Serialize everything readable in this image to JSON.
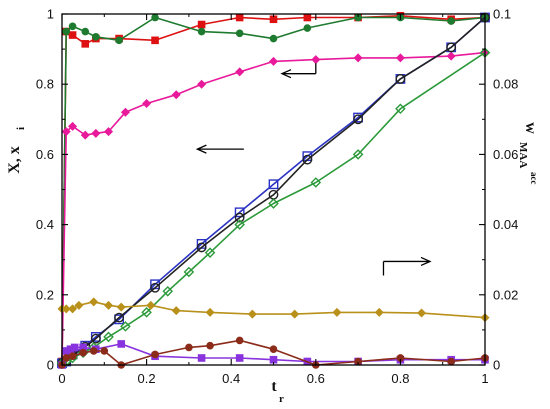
{
  "chart_data": {
    "type": "line",
    "title": "",
    "xlabel": "t",
    "xlabel_sub": "r",
    "ylabel": "X, x",
    "ylabel_sub": "i",
    "y2label": "w",
    "y2label_sub": "MAA",
    "y2label_sub2": "acc",
    "xlim": [
      0,
      1
    ],
    "ylim": [
      0,
      1
    ],
    "y2lim": [
      0,
      0.1
    ],
    "x_ticks": [
      "0",
      "0.2",
      "0.4",
      "0.6",
      "0.8",
      "1"
    ],
    "y_ticks": [
      "0",
      "0.2",
      "0.4",
      "0.6",
      "0.8",
      "1"
    ],
    "y2_ticks": [
      "0",
      "0.02",
      "0.04",
      "0.06",
      "0.08",
      "0.1"
    ],
    "grid": false,
    "legend": "none",
    "series": [
      {
        "color": "#dd1111",
        "marker": "square-filled",
        "axis": "left",
        "x": [
          0,
          0.01,
          0.025,
          0.055,
          0.08,
          0.135,
          0.22,
          0.33,
          0.42,
          0.5,
          0.58,
          0.7,
          0.8,
          0.92,
          1.0
        ],
        "y": [
          0.01,
          0.95,
          0.94,
          0.915,
          0.93,
          0.93,
          0.925,
          0.97,
          0.99,
          0.985,
          0.99,
          0.99,
          0.995,
          0.985,
          0.99
        ]
      },
      {
        "color": "#1e7a2e",
        "marker": "circle-filled",
        "axis": "left",
        "x": [
          0,
          0.01,
          0.025,
          0.055,
          0.08,
          0.135,
          0.22,
          0.33,
          0.42,
          0.5,
          0.58,
          0.7,
          0.8,
          0.92,
          1.0
        ],
        "y": [
          0.01,
          0.95,
          0.965,
          0.95,
          0.935,
          0.925,
          0.99,
          0.95,
          0.945,
          0.93,
          0.96,
          0.99,
          0.99,
          0.98,
          0.99
        ]
      },
      {
        "color": "#e8199a",
        "marker": "diamond-filled",
        "axis": "left",
        "x": [
          0,
          0.01,
          0.025,
          0.055,
          0.08,
          0.11,
          0.15,
          0.2,
          0.27,
          0.33,
          0.42,
          0.5,
          0.6,
          0.7,
          0.8,
          0.92,
          1.0
        ],
        "y": [
          0.005,
          0.665,
          0.68,
          0.655,
          0.66,
          0.665,
          0.72,
          0.745,
          0.77,
          0.8,
          0.835,
          0.865,
          0.87,
          0.875,
          0.875,
          0.88,
          0.89
        ]
      },
      {
        "color": "#2a33c4",
        "marker": "square-open",
        "axis": "left",
        "x": [
          0,
          0.01,
          0.025,
          0.055,
          0.08,
          0.135,
          0.22,
          0.33,
          0.42,
          0.5,
          0.58,
          0.7,
          0.8,
          0.92,
          1.0
        ],
        "y": [
          0.005,
          0.01,
          0.03,
          0.055,
          0.08,
          0.13,
          0.23,
          0.345,
          0.435,
          0.515,
          0.595,
          0.705,
          0.815,
          0.905,
          0.99
        ]
      },
      {
        "color": "#222222",
        "marker": "circle-open",
        "axis": "left",
        "x": [
          0,
          0.01,
          0.025,
          0.055,
          0.08,
          0.135,
          0.22,
          0.33,
          0.42,
          0.5,
          0.58,
          0.7,
          0.8,
          0.92,
          1.0
        ],
        "y": [
          0.005,
          0.01,
          0.028,
          0.052,
          0.075,
          0.135,
          0.22,
          0.335,
          0.42,
          0.485,
          0.585,
          0.7,
          0.815,
          0.905,
          0.99
        ]
      },
      {
        "color": "#2c9a3a",
        "marker": "diamond-open",
        "axis": "left",
        "x": [
          0,
          0.01,
          0.025,
          0.05,
          0.075,
          0.11,
          0.15,
          0.2,
          0.25,
          0.3,
          0.35,
          0.42,
          0.5,
          0.6,
          0.7,
          0.8,
          1.0
        ],
        "y": [
          0.005,
          0.01,
          0.02,
          0.035,
          0.05,
          0.08,
          0.11,
          0.15,
          0.21,
          0.265,
          0.32,
          0.4,
          0.46,
          0.52,
          0.6,
          0.73,
          0.89
        ]
      },
      {
        "color": "#b8901a",
        "marker": "diamond-filled",
        "axis": "left",
        "x": [
          0,
          0.01,
          0.025,
          0.04,
          0.075,
          0.11,
          0.14,
          0.21,
          0.27,
          0.35,
          0.45,
          0.55,
          0.65,
          0.75,
          0.85,
          1.0
        ],
        "y": [
          0.16,
          0.16,
          0.16,
          0.17,
          0.18,
          0.17,
          0.165,
          0.17,
          0.155,
          0.15,
          0.145,
          0.145,
          0.15,
          0.15,
          0.148,
          0.135
        ]
      },
      {
        "color": "#8833dd",
        "marker": "square-filled",
        "axis": "left",
        "x": [
          0,
          0.01,
          0.02,
          0.03,
          0.05,
          0.08,
          0.14,
          0.22,
          0.33,
          0.42,
          0.5,
          0.58,
          0.7,
          0.8,
          0.92,
          1.0
        ],
        "y": [
          0.0,
          0.04,
          0.045,
          0.05,
          0.05,
          0.045,
          0.06,
          0.025,
          0.02,
          0.02,
          0.015,
          0.01,
          0.01,
          0.015,
          0.015,
          0.015
        ]
      },
      {
        "color": "#8b2b1a",
        "marker": "circle-filled",
        "axis": "left",
        "x": [
          0,
          0.01,
          0.025,
          0.05,
          0.075,
          0.1,
          0.14,
          0.22,
          0.3,
          0.35,
          0.42,
          0.5,
          0.6,
          0.7,
          0.8,
          0.92,
          1.0
        ],
        "y": [
          0.0,
          0.02,
          0.025,
          0.035,
          0.04,
          0.04,
          0.0,
          0.03,
          0.05,
          0.055,
          0.07,
          0.045,
          0.0,
          0.01,
          0.02,
          0.01,
          0.02
        ]
      }
    ],
    "annotations": [
      {
        "type": "arrow",
        "direction": "left",
        "target_axis": "left",
        "x_start": 0.6,
        "x_end": 0.52,
        "y": 0.83,
        "hook_to_y": 0.86
      },
      {
        "type": "arrow",
        "direction": "left",
        "target_axis": "left",
        "x_start": 0.43,
        "x_end": 0.32,
        "y": 0.615
      },
      {
        "type": "arrow",
        "direction": "right",
        "target_axis": "right",
        "x_start": 0.76,
        "x_end": 0.87,
        "y": 0.295,
        "hook_to_y": 0.255
      }
    ]
  }
}
